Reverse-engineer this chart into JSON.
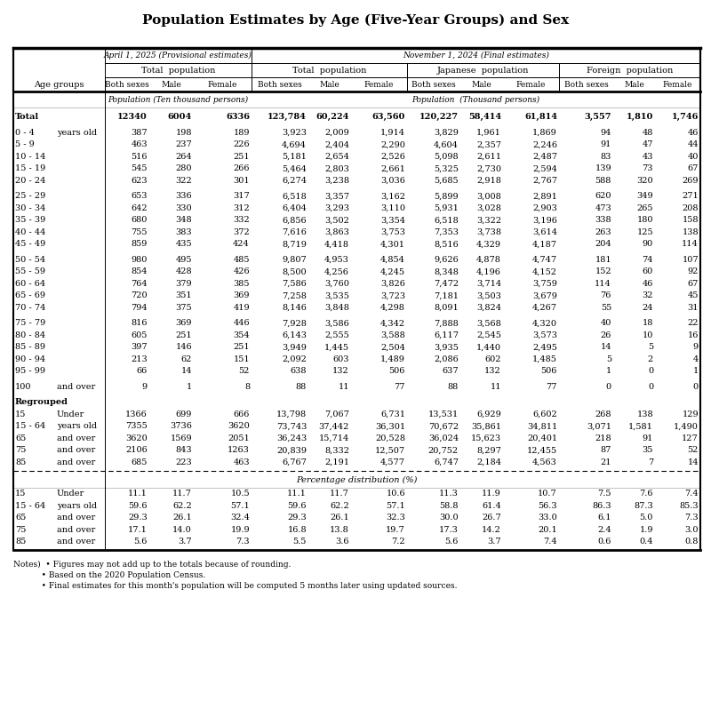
{
  "title": "Population Estimates by Age (Five-Year Groups) and Sex",
  "notes": [
    "Notes)  • Figures may not add up to the totals because of rounding.",
    "           • Based on the 2020 Population Census.",
    "           • Final estimates for this month's population will be computed 5 months later using updated sources."
  ],
  "rows": [
    [
      "Total",
      "",
      "12340",
      "6004",
      "6336",
      "123,784",
      "60,224",
      "63,560",
      "120,227",
      "58,414",
      "61,814",
      "3,557",
      "1,810",
      "1,746"
    ],
    [
      "0 - 4",
      "years old",
      "387",
      "198",
      "189",
      "3,923",
      "2,009",
      "1,914",
      "3,829",
      "1,961",
      "1,869",
      "94",
      "48",
      "46"
    ],
    [
      "5 - 9",
      "",
      "463",
      "237",
      "226",
      "4,694",
      "2,404",
      "2,290",
      "4,604",
      "2,357",
      "2,246",
      "91",
      "47",
      "44"
    ],
    [
      "10 - 14",
      "",
      "516",
      "264",
      "251",
      "5,181",
      "2,654",
      "2,526",
      "5,098",
      "2,611",
      "2,487",
      "83",
      "43",
      "40"
    ],
    [
      "15 - 19",
      "",
      "545",
      "280",
      "266",
      "5,464",
      "2,803",
      "2,661",
      "5,325",
      "2,730",
      "2,594",
      "139",
      "73",
      "67"
    ],
    [
      "20 - 24",
      "",
      "623",
      "322",
      "301",
      "6,274",
      "3,238",
      "3,036",
      "5,685",
      "2,918",
      "2,767",
      "588",
      "320",
      "269"
    ],
    [
      "25 - 29",
      "",
      "653",
      "336",
      "317",
      "6,518",
      "3,357",
      "3,162",
      "5,899",
      "3,008",
      "2,891",
      "620",
      "349",
      "271"
    ],
    [
      "30 - 34",
      "",
      "642",
      "330",
      "312",
      "6,404",
      "3,293",
      "3,110",
      "5,931",
      "3,028",
      "2,903",
      "473",
      "265",
      "208"
    ],
    [
      "35 - 39",
      "",
      "680",
      "348",
      "332",
      "6,856",
      "3,502",
      "3,354",
      "6,518",
      "3,322",
      "3,196",
      "338",
      "180",
      "158"
    ],
    [
      "40 - 44",
      "",
      "755",
      "383",
      "372",
      "7,616",
      "3,863",
      "3,753",
      "7,353",
      "3,738",
      "3,614",
      "263",
      "125",
      "138"
    ],
    [
      "45 - 49",
      "",
      "859",
      "435",
      "424",
      "8,719",
      "4,418",
      "4,301",
      "8,516",
      "4,329",
      "4,187",
      "204",
      "90",
      "114"
    ],
    [
      "50 - 54",
      "",
      "980",
      "495",
      "485",
      "9,807",
      "4,953",
      "4,854",
      "9,626",
      "4,878",
      "4,747",
      "181",
      "74",
      "107"
    ],
    [
      "55 - 59",
      "",
      "854",
      "428",
      "426",
      "8,500",
      "4,256",
      "4,245",
      "8,348",
      "4,196",
      "4,152",
      "152",
      "60",
      "92"
    ],
    [
      "60 - 64",
      "",
      "764",
      "379",
      "385",
      "7,586",
      "3,760",
      "3,826",
      "7,472",
      "3,714",
      "3,759",
      "114",
      "46",
      "67"
    ],
    [
      "65 - 69",
      "",
      "720",
      "351",
      "369",
      "7,258",
      "3,535",
      "3,723",
      "7,181",
      "3,503",
      "3,679",
      "76",
      "32",
      "45"
    ],
    [
      "70 - 74",
      "",
      "794",
      "375",
      "419",
      "8,146",
      "3,848",
      "4,298",
      "8,091",
      "3,824",
      "4,267",
      "55",
      "24",
      "31"
    ],
    [
      "75 - 79",
      "",
      "816",
      "369",
      "446",
      "7,928",
      "3,586",
      "4,342",
      "7,888",
      "3,568",
      "4,320",
      "40",
      "18",
      "22"
    ],
    [
      "80 - 84",
      "",
      "605",
      "251",
      "354",
      "6,143",
      "2,555",
      "3,588",
      "6,117",
      "2,545",
      "3,573",
      "26",
      "10",
      "16"
    ],
    [
      "85 - 89",
      "",
      "397",
      "146",
      "251",
      "3,949",
      "1,445",
      "2,504",
      "3,935",
      "1,440",
      "2,495",
      "14",
      "5",
      "9"
    ],
    [
      "90 - 94",
      "",
      "213",
      "62",
      "151",
      "2,092",
      "603",
      "1,489",
      "2,086",
      "602",
      "1,485",
      "5",
      "2",
      "4"
    ],
    [
      "95 - 99",
      "",
      "66",
      "14",
      "52",
      "638",
      "132",
      "506",
      "637",
      "132",
      "506",
      "1",
      "0",
      "1"
    ],
    [
      "100",
      "and over",
      "9",
      "1",
      "8",
      "88",
      "11",
      "77",
      "88",
      "11",
      "77",
      "0",
      "0",
      "0"
    ],
    [
      "Regrouped",
      "",
      "",
      "",
      "",
      "",
      "",
      "",
      "",
      "",
      "",
      "",
      "",
      ""
    ],
    [
      "15",
      "Under",
      "1366",
      "699",
      "666",
      "13,798",
      "7,067",
      "6,731",
      "13,531",
      "6,929",
      "6,602",
      "268",
      "138",
      "129"
    ],
    [
      "15 - 64",
      "years old",
      "7355",
      "3736",
      "3620",
      "73,743",
      "37,442",
      "36,301",
      "70,672",
      "35,861",
      "34,811",
      "3,071",
      "1,581",
      "1,490"
    ],
    [
      "65",
      "and over",
      "3620",
      "1569",
      "2051",
      "36,243",
      "15,714",
      "20,528",
      "36,024",
      "15,623",
      "20,401",
      "218",
      "91",
      "127"
    ],
    [
      "75",
      "and over",
      "2106",
      "843",
      "1263",
      "20,839",
      "8,332",
      "12,507",
      "20,752",
      "8,297",
      "12,455",
      "87",
      "35",
      "52"
    ],
    [
      "85",
      "and over",
      "685",
      "223",
      "463",
      "6,767",
      "2,191",
      "4,577",
      "6,747",
      "2,184",
      "4,563",
      "21",
      "7",
      "14"
    ],
    [
      "15",
      "Under",
      "11.1",
      "11.7",
      "10.5",
      "11.1",
      "11.7",
      "10.6",
      "11.3",
      "11.9",
      "10.7",
      "7.5",
      "7.6",
      "7.4"
    ],
    [
      "15 - 64",
      "years old",
      "59.6",
      "62.2",
      "57.1",
      "59.6",
      "62.2",
      "57.1",
      "58.8",
      "61.4",
      "56.3",
      "86.3",
      "87.3",
      "85.3"
    ],
    [
      "65",
      "and over",
      "29.3",
      "26.1",
      "32.4",
      "29.3",
      "26.1",
      "32.3",
      "30.0",
      "26.7",
      "33.0",
      "6.1",
      "5.0",
      "7.3"
    ],
    [
      "75",
      "and over",
      "17.1",
      "14.0",
      "19.9",
      "16.8",
      "13.8",
      "19.7",
      "17.3",
      "14.2",
      "20.1",
      "2.4",
      "1.9",
      "3.0"
    ],
    [
      "85",
      "and over",
      "5.6",
      "3.7",
      "7.3",
      "5.5",
      "3.6",
      "7.2",
      "5.6",
      "3.7",
      "7.4",
      "0.6",
      "0.4",
      "0.8"
    ]
  ]
}
